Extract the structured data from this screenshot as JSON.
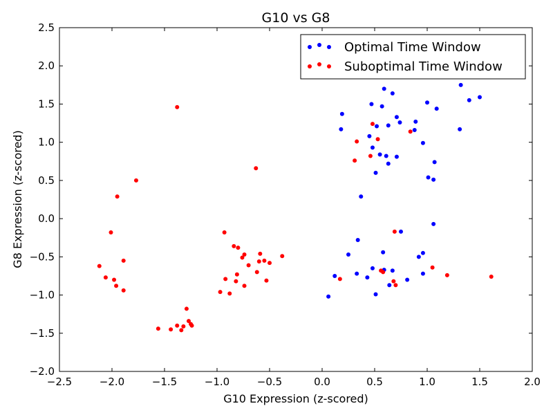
{
  "chart_data": {
    "type": "scatter",
    "title": "G10 vs G8",
    "xlabel": "G10 Expression (z-scored)",
    "ylabel": "G8 Expression (z-scored)",
    "xlim": [
      -2.5,
      2.0
    ],
    "ylim": [
      -2.0,
      2.5
    ],
    "xticks": [
      -2.5,
      -2.0,
      -1.5,
      -1.0,
      -0.5,
      0.0,
      0.5,
      1.0,
      1.5,
      2.0
    ],
    "yticks": [
      -2.0,
      -1.5,
      -1.0,
      -0.5,
      0.0,
      0.5,
      1.0,
      1.5,
      2.0,
      2.5
    ],
    "xtick_labels": [
      "−2.5",
      "−2.0",
      "−1.5",
      "−1.0",
      "−0.5",
      "0.0",
      "0.5",
      "1.0",
      "1.5",
      "2.0"
    ],
    "ytick_labels": [
      "−2.0",
      "−1.5",
      "−1.0",
      "−0.5",
      "0.0",
      "0.5",
      "1.0",
      "1.5",
      "2.0",
      "2.5"
    ],
    "grid": false,
    "legend_position": "top-right",
    "series": [
      {
        "name": "Optimal Time Window",
        "color": "#0000ff",
        "points": [
          [
            0.59,
            1.7
          ],
          [
            0.67,
            1.64
          ],
          [
            0.47,
            1.5
          ],
          [
            0.57,
            1.47
          ],
          [
            0.71,
            1.33
          ],
          [
            0.74,
            1.26
          ],
          [
            0.63,
            1.22
          ],
          [
            0.52,
            1.21
          ],
          [
            0.89,
            1.27
          ],
          [
            0.88,
            1.16
          ],
          [
            1.0,
            1.52
          ],
          [
            1.09,
            1.44
          ],
          [
            1.32,
            1.75
          ],
          [
            1.4,
            1.55
          ],
          [
            1.5,
            1.59
          ],
          [
            1.31,
            1.17
          ],
          [
            0.19,
            1.37
          ],
          [
            0.18,
            1.17
          ],
          [
            0.45,
            1.08
          ],
          [
            0.48,
            0.93
          ],
          [
            0.55,
            0.84
          ],
          [
            0.61,
            0.82
          ],
          [
            0.71,
            0.81
          ],
          [
            0.96,
            0.99
          ],
          [
            0.63,
            0.72
          ],
          [
            1.07,
            0.74
          ],
          [
            0.51,
            0.6
          ],
          [
            1.01,
            0.54
          ],
          [
            1.06,
            0.51
          ],
          [
            0.37,
            0.29
          ],
          [
            1.06,
            -0.07
          ],
          [
            0.75,
            -0.17
          ],
          [
            0.34,
            -0.28
          ],
          [
            0.58,
            -0.44
          ],
          [
            0.25,
            -0.47
          ],
          [
            0.96,
            -0.45
          ],
          [
            0.92,
            -0.5
          ],
          [
            0.48,
            -0.65
          ],
          [
            0.67,
            -0.68
          ],
          [
            0.59,
            -0.67
          ],
          [
            0.12,
            -0.75
          ],
          [
            0.33,
            -0.72
          ],
          [
            0.43,
            -0.77
          ],
          [
            0.96,
            -0.72
          ],
          [
            0.81,
            -0.8
          ],
          [
            0.64,
            -0.87
          ],
          [
            0.51,
            -0.99
          ],
          [
            0.06,
            -1.02
          ]
        ]
      },
      {
        "name": "Suboptimal Time Window",
        "color": "#ff0000",
        "points": [
          [
            -1.38,
            1.46
          ],
          [
            -0.63,
            0.66
          ],
          [
            -1.77,
            0.5
          ],
          [
            -1.95,
            0.29
          ],
          [
            -2.01,
            -0.18
          ],
          [
            -0.93,
            -0.18
          ],
          [
            -2.12,
            -0.62
          ],
          [
            -1.89,
            -0.55
          ],
          [
            -2.06,
            -0.77
          ],
          [
            -1.98,
            -0.8
          ],
          [
            -1.96,
            -0.88
          ],
          [
            -1.89,
            -0.94
          ],
          [
            -0.84,
            -0.36
          ],
          [
            -0.8,
            -0.38
          ],
          [
            -0.74,
            -0.47
          ],
          [
            -0.76,
            -0.51
          ],
          [
            -0.7,
            -0.61
          ],
          [
            -0.59,
            -0.46
          ],
          [
            -0.6,
            -0.56
          ],
          [
            -0.55,
            -0.55
          ],
          [
            -0.5,
            -0.58
          ],
          [
            -0.38,
            -0.49
          ],
          [
            -0.62,
            -0.7
          ],
          [
            -0.81,
            -0.73
          ],
          [
            -0.92,
            -0.79
          ],
          [
            -0.82,
            -0.82
          ],
          [
            -0.74,
            -0.88
          ],
          [
            -0.53,
            -0.81
          ],
          [
            -0.97,
            -0.96
          ],
          [
            -0.88,
            -0.98
          ],
          [
            -1.29,
            -1.18
          ],
          [
            -1.27,
            -1.34
          ],
          [
            -1.25,
            -1.38
          ],
          [
            -1.24,
            -1.4
          ],
          [
            -1.38,
            -1.4
          ],
          [
            -1.32,
            -1.41
          ],
          [
            -1.56,
            -1.44
          ],
          [
            -1.44,
            -1.45
          ],
          [
            -1.34,
            -1.46
          ],
          [
            0.48,
            1.24
          ],
          [
            0.53,
            1.04
          ],
          [
            0.84,
            1.14
          ],
          [
            0.33,
            1.01
          ],
          [
            0.31,
            0.76
          ],
          [
            0.46,
            0.82
          ],
          [
            0.69,
            -0.17
          ],
          [
            0.56,
            -0.68
          ],
          [
            0.58,
            -0.7
          ],
          [
            1.05,
            -0.64
          ],
          [
            1.19,
            -0.74
          ],
          [
            1.61,
            -0.76
          ],
          [
            0.17,
            -0.79
          ],
          [
            0.68,
            -0.82
          ],
          [
            0.7,
            -0.87
          ]
        ]
      }
    ]
  }
}
